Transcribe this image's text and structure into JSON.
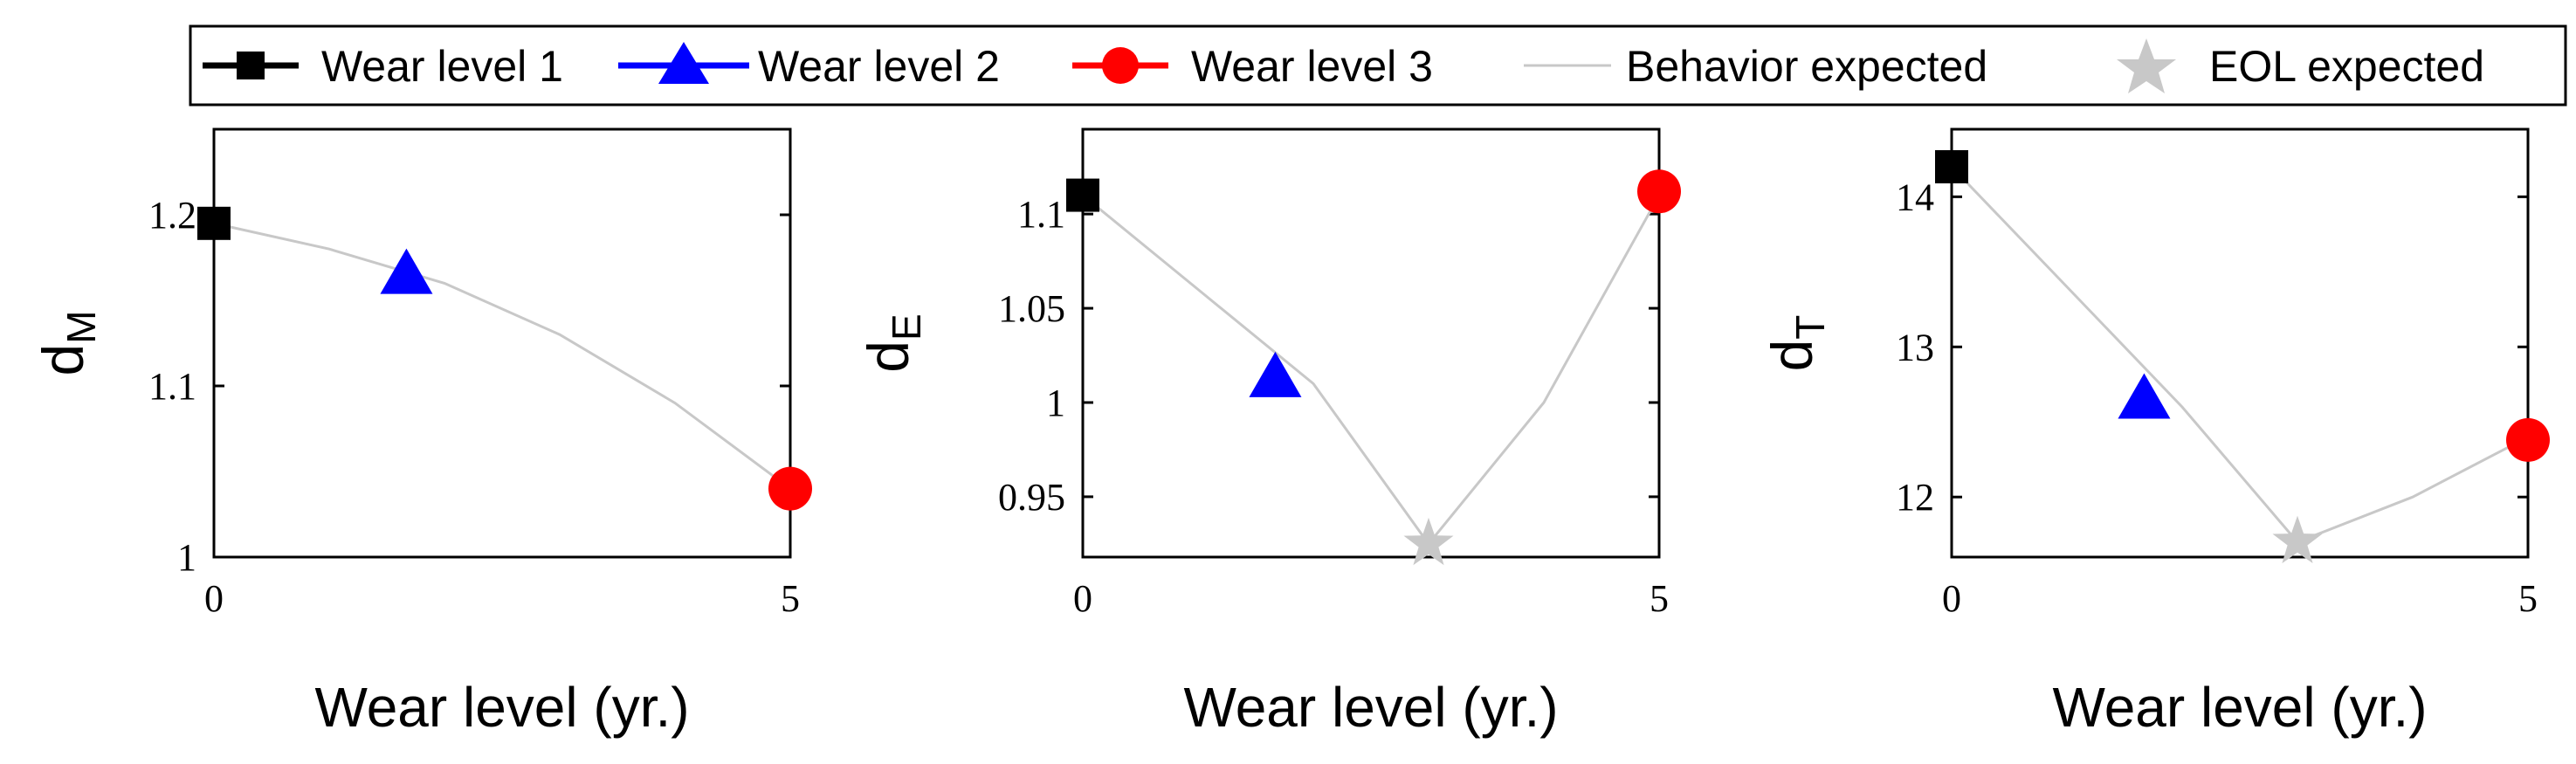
{
  "legend": {
    "items": [
      {
        "label": "Wear level 1",
        "marker": "square",
        "color": "#000000"
      },
      {
        "label": "Wear level 2",
        "marker": "triangle",
        "color": "#0000ff"
      },
      {
        "label": "Wear level 3",
        "marker": "circle",
        "color": "#ff0000"
      },
      {
        "label": "Behavior expected",
        "marker": "line",
        "color": "#c8c8c8"
      },
      {
        "label": "EOL expected",
        "marker": "star",
        "color": "#c8c8c8"
      }
    ]
  },
  "colors": {
    "wear1": "#000000",
    "wear2": "#0000ff",
    "wear3": "#ff0000",
    "expected": "#c8c8c8"
  },
  "chart_data": [
    {
      "type": "line",
      "xlabel": "Wear level (yr.)",
      "ylabel_main": "d",
      "ylabel_sub": "M",
      "xlim": [
        0,
        5
      ],
      "ylim": [
        1.0,
        1.25
      ],
      "xticks": [
        0,
        5
      ],
      "yticks": [
        1.0,
        1.1,
        1.2
      ],
      "ytick_labels": [
        "1",
        "1.1",
        "1.2"
      ],
      "behavior_expected": {
        "x": [
          0,
          1,
          2,
          3,
          4,
          5
        ],
        "y": [
          1.195,
          1.18,
          1.16,
          1.13,
          1.09,
          1.04
        ]
      },
      "points": [
        {
          "series": "Wear level 1",
          "x": 0,
          "y": 1.195
        },
        {
          "series": "Wear level 2",
          "x": 1.67,
          "y": 1.165
        },
        {
          "series": "Wear level 3",
          "x": 5,
          "y": 1.04
        }
      ],
      "eol": null
    },
    {
      "type": "line",
      "xlabel": "Wear level (yr.)",
      "ylabel_main": "d",
      "ylabel_sub": "E",
      "xlim": [
        0,
        5
      ],
      "ylim": [
        0.918,
        1.145
      ],
      "xticks": [
        0,
        5
      ],
      "yticks": [
        0.95,
        1.0,
        1.05,
        1.1
      ],
      "ytick_labels": [
        "0.95",
        "1",
        "1.05",
        "1.1"
      ],
      "behavior_expected": {
        "x": [
          0,
          1,
          2,
          3,
          4,
          5
        ],
        "y": [
          1.11,
          1.06,
          1.01,
          0.925,
          1.0,
          1.11
        ]
      },
      "points": [
        {
          "series": "Wear level 1",
          "x": 0,
          "y": 1.11
        },
        {
          "series": "Wear level 2",
          "x": 1.67,
          "y": 1.013
        },
        {
          "series": "Wear level 3",
          "x": 5,
          "y": 1.112
        }
      ],
      "eol": {
        "x": 3,
        "y": 0.925
      }
    },
    {
      "type": "line",
      "xlabel": "Wear level (yr.)",
      "ylabel_main": "d",
      "ylabel_sub": "T",
      "xlim": [
        0,
        5
      ],
      "ylim": [
        11.6,
        14.45
      ],
      "xticks": [
        0,
        5
      ],
      "yticks": [
        12,
        13,
        14
      ],
      "ytick_labels": [
        "12",
        "13",
        "14"
      ],
      "behavior_expected": {
        "x": [
          0,
          1,
          2,
          3,
          4,
          5
        ],
        "y": [
          14.2,
          13.4,
          12.6,
          11.7,
          12.0,
          12.4
        ]
      },
      "points": [
        {
          "series": "Wear level 1",
          "x": 0,
          "y": 14.2
        },
        {
          "series": "Wear level 2",
          "x": 1.67,
          "y": 12.65
        },
        {
          "series": "Wear level 3",
          "x": 5,
          "y": 12.38
        }
      ],
      "eol": {
        "x": 3,
        "y": 11.7
      }
    }
  ]
}
